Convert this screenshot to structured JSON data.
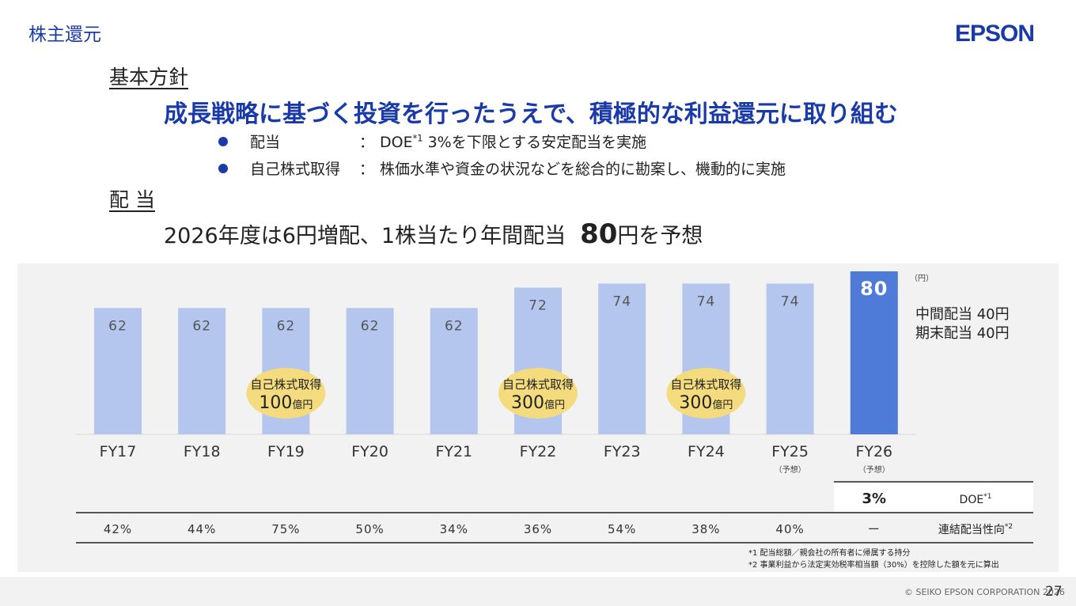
{
  "header": {
    "section_title": "株主還元",
    "logo_text": "EPSON"
  },
  "policy": {
    "heading": "基本方針",
    "statement": "成長戦略に基づく投資を行ったうえで、積極的な利益還元に取り組む",
    "bullets": [
      {
        "label": "配当",
        "colon": "：",
        "text_prefix": "DOE",
        "text_sup": "*1",
        "text_suffix": " 3%を下限とする安定配当を実施"
      },
      {
        "label": "自己株式取得",
        "colon": "：",
        "text_prefix": "株価水準や資金の状況などを総合的に勘案し、機動的に実施",
        "text_sup": "",
        "text_suffix": ""
      }
    ]
  },
  "dividend": {
    "heading": "配 当",
    "forecast_prefix": "2026年度は6円増配、1株当たり年間配当",
    "forecast_value": "80",
    "forecast_suffix": "円を予想"
  },
  "chart_data": {
    "type": "bar",
    "categories": [
      "FY17",
      "FY18",
      "FY19",
      "FY20",
      "FY21",
      "FY22",
      "FY23",
      "FY24",
      "FY25",
      "FY26"
    ],
    "category_notes": [
      "",
      "",
      "",
      "",
      "",
      "",
      "",
      "",
      "（予想）",
      "（予想）"
    ],
    "values": [
      62,
      62,
      62,
      62,
      62,
      72,
      74,
      74,
      74,
      80
    ],
    "value_labels": [
      "62",
      "62",
      "62",
      "62",
      "62",
      "72",
      "74",
      "74",
      "74",
      "80"
    ],
    "unit_label": "（円）",
    "ylim": [
      0,
      80
    ],
    "highlight_index": 9,
    "colors": {
      "bar": "#b4c5ee",
      "bar_highlight": "#4f7bd8",
      "bar_label": "#555555",
      "bar_label_highlight": "#ffffff",
      "bubble": "#f3db7e"
    },
    "breakdown": [
      "中間配当 40円",
      "期末配当 40円"
    ],
    "buybacks": [
      {
        "index": 2,
        "title": "自己株式取得",
        "amount": "100",
        "unit": "億円"
      },
      {
        "index": 5,
        "title": "自己株式取得",
        "amount": "300",
        "unit": "億円"
      },
      {
        "index": 7,
        "title": "自己株式取得",
        "amount": "300",
        "unit": "億円"
      }
    ],
    "doe": {
      "value": "3%",
      "label": "DOE",
      "label_sup": "*1"
    },
    "payout_ratio": {
      "values": [
        "42%",
        "44%",
        "75%",
        "50%",
        "34%",
        "36%",
        "54%",
        "38%",
        "40%",
        "ー"
      ],
      "label": "連結配当性向",
      "label_sup": "*2"
    },
    "footnotes": [
      "*1  配当総額／親会社の所有者に帰属する持分",
      "*2  事業利益から法定実効税率相当額（30%）を控除した額を元に算出"
    ]
  },
  "footer": {
    "copyright": "© SEIKO EPSON CORPORATION 2026",
    "page_number": "27"
  }
}
